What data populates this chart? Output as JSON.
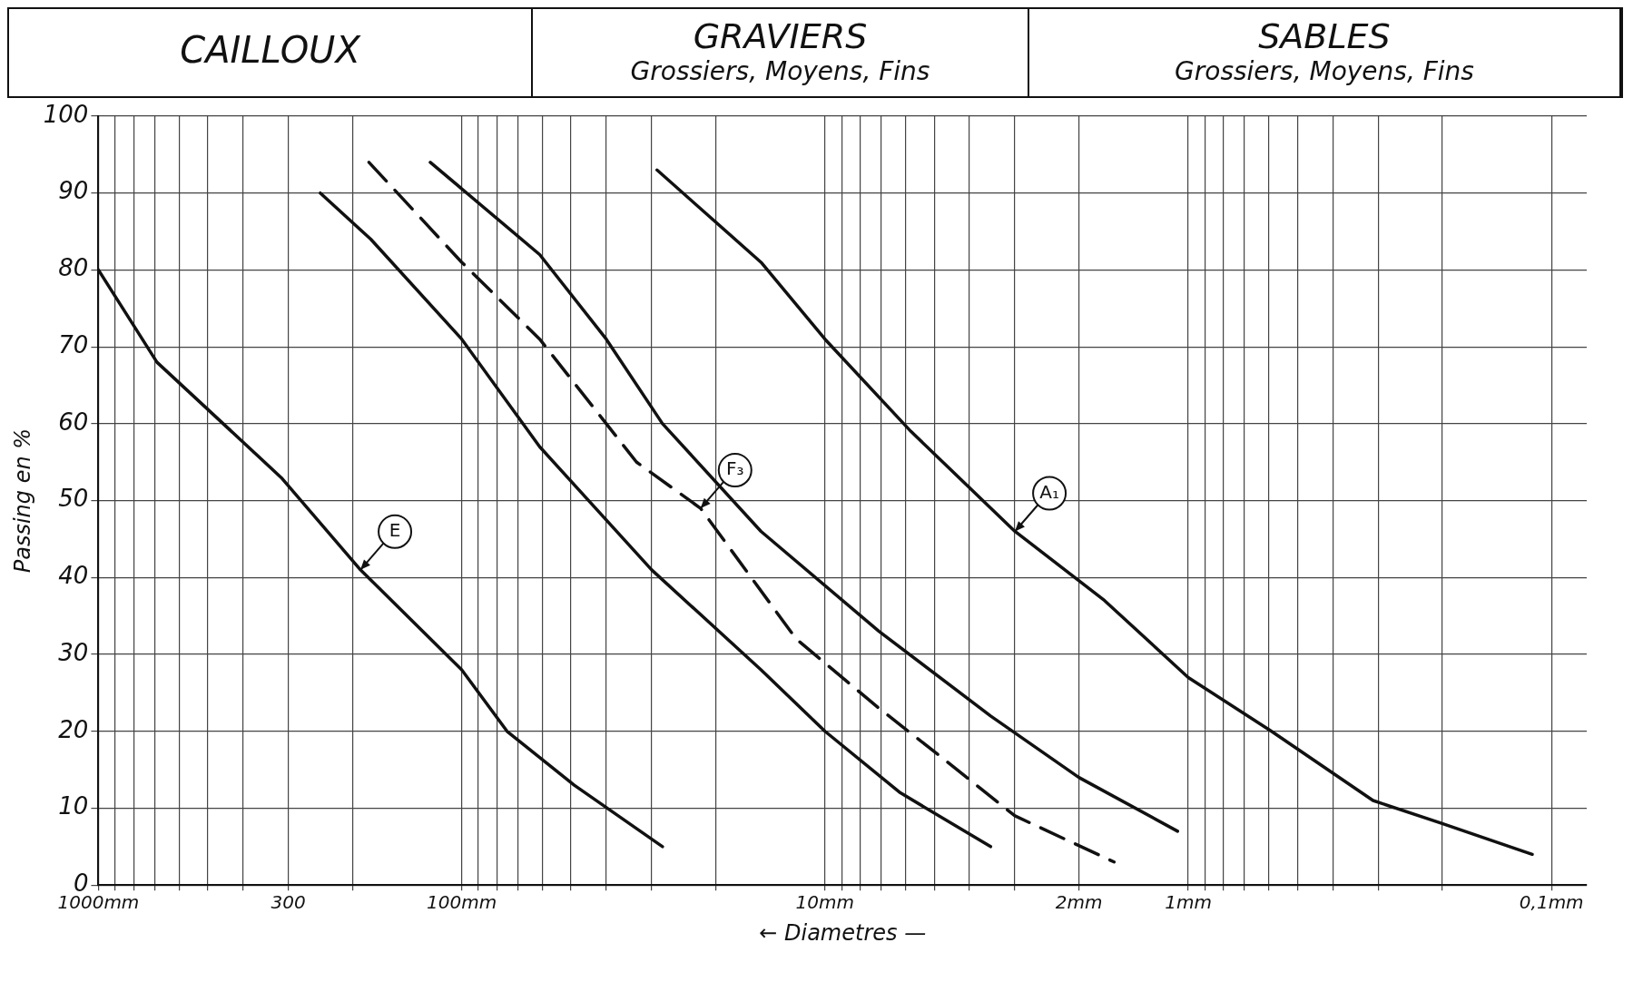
{
  "chart_data": {
    "type": "line",
    "xlabel": "← Diametres —",
    "ylabel": "Passing en %",
    "log": "x",
    "xlim": [
      1000,
      0.08
    ],
    "ylim": [
      0,
      100
    ],
    "xticks": [
      {
        "value": 1000,
        "label": "1000mm"
      },
      {
        "value": 900,
        "label": null
      },
      {
        "value": 800,
        "label": null
      },
      {
        "value": 700,
        "label": null
      },
      {
        "value": 600,
        "label": null
      },
      {
        "value": 500,
        "label": null
      },
      {
        "value": 400,
        "label": null
      },
      {
        "value": 300,
        "label": "300"
      },
      {
        "value": 200,
        "label": null
      },
      {
        "value": 100,
        "label": "100mm"
      },
      {
        "value": 90,
        "label": null
      },
      {
        "value": 80,
        "label": null
      },
      {
        "value": 70,
        "label": null
      },
      {
        "value": 60,
        "label": null
      },
      {
        "value": 50,
        "label": null
      },
      {
        "value": 40,
        "label": null
      },
      {
        "value": 30,
        "label": null
      },
      {
        "value": 20,
        "label": null
      },
      {
        "value": 10,
        "label": "10mm"
      },
      {
        "value": 9,
        "label": null
      },
      {
        "value": 8,
        "label": null
      },
      {
        "value": 7,
        "label": null
      },
      {
        "value": 6,
        "label": null
      },
      {
        "value": 5,
        "label": null
      },
      {
        "value": 4,
        "label": null
      },
      {
        "value": 3,
        "label": null
      },
      {
        "value": 2,
        "label": "2mm"
      },
      {
        "value": 1,
        "label": "1mm"
      },
      {
        "value": 0.9,
        "label": null
      },
      {
        "value": 0.8,
        "label": null
      },
      {
        "value": 0.7,
        "label": null
      },
      {
        "value": 0.6,
        "label": null
      },
      {
        "value": 0.5,
        "label": null
      },
      {
        "value": 0.4,
        "label": null
      },
      {
        "value": 0.3,
        "label": null
      },
      {
        "value": 0.2,
        "label": null
      },
      {
        "value": 0.1,
        "label": "0,1mm"
      }
    ],
    "yticks": [
      0,
      10,
      20,
      30,
      40,
      50,
      60,
      70,
      80,
      90,
      100
    ],
    "grid": true,
    "legend": false,
    "marker": "none",
    "series": [
      {
        "color": "#111111",
        "x": [
          1000,
          690,
          314,
          190,
          100,
          75,
          49,
          28
        ],
        "values": [
          80,
          68,
          53,
          41,
          28,
          20,
          13,
          5
        ]
      },
      {
        "color": "#111111",
        "x": [
          245,
          178,
          100,
          61,
          30,
          15,
          10,
          6.2,
          3.5
        ],
        "values": [
          90,
          84,
          71,
          57,
          41,
          28,
          20,
          12,
          5
        ]
      },
      {
        "color": "#111111",
        "line_style": "dashed",
        "x": [
          180,
          100,
          61,
          33,
          22,
          12,
          7.1,
          4.6,
          3,
          1.6
        ],
        "values": [
          94,
          81,
          71,
          55,
          49,
          32,
          23,
          16,
          9,
          3
        ]
      },
      {
        "color": "#111111",
        "x": [
          122,
          61,
          40,
          28,
          15,
          7.1,
          3.5,
          2,
          1.07
        ],
        "values": [
          94,
          82,
          71,
          60,
          46,
          33,
          22,
          14,
          7
        ]
      },
      {
        "color": "#111111",
        "x": [
          29,
          15,
          10,
          5.8,
          3,
          1.7,
          1,
          0.59,
          0.31,
          0.2,
          0.113
        ],
        "values": [
          93,
          81,
          71,
          59,
          46,
          37,
          27,
          20,
          11,
          8,
          4
        ]
      }
    ],
    "annotations": [
      "CAILLOUX",
      "GRAVIERS",
      "Grossiers, Moyens, Fins",
      "SABLES",
      "Grossiers, Moyens, Fins",
      {
        "text": "E",
        "x": 190,
        "y": 41
      },
      {
        "text": "F₃",
        "x": 22,
        "y": 49
      },
      {
        "text": "A₁",
        "x": 3,
        "y": 46
      }
    ]
  }
}
